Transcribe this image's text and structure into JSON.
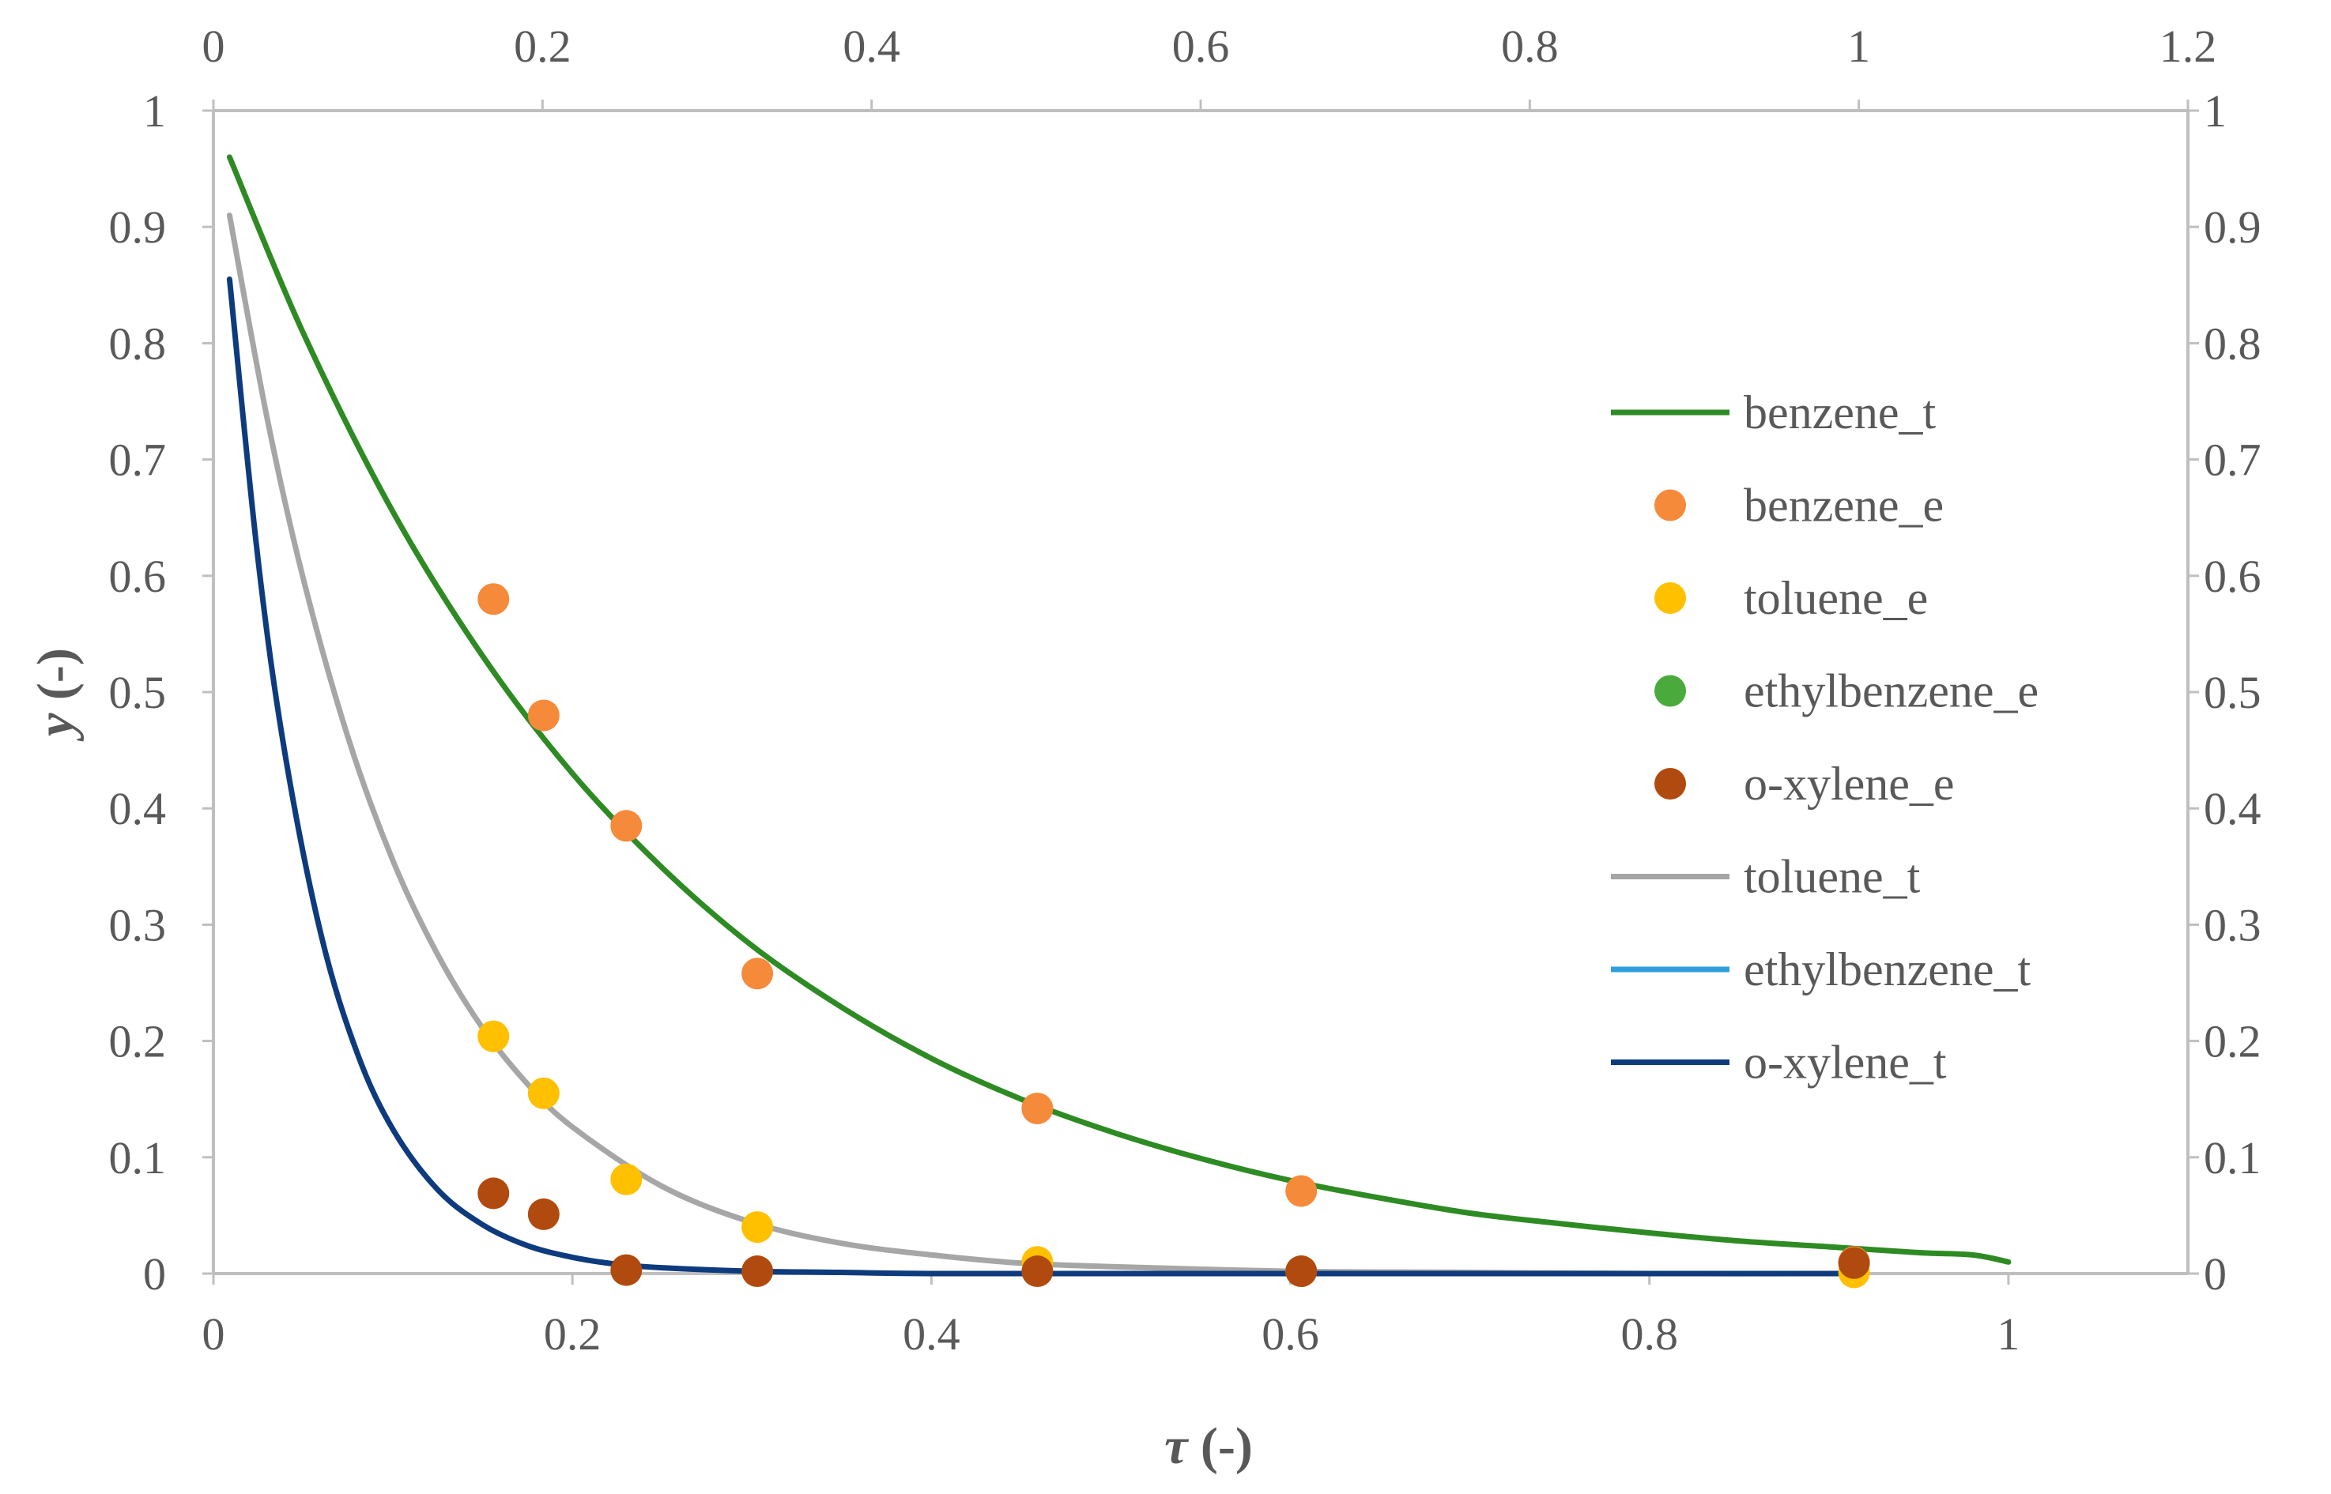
{
  "chart_data": {
    "type": "scatter",
    "xlabel_symbol": "τ",
    "xlabel_unit": " (-)",
    "ylabel_symbol": "y",
    "ylabel_unit": " (-)",
    "x_bottom": {
      "min": 0,
      "max": 1.1,
      "ticks": [
        0,
        0.2,
        0.4,
        0.6,
        0.8,
        1
      ],
      "labels": [
        "0",
        "0.2",
        "0.4",
        "0.6",
        "0.8",
        "1"
      ]
    },
    "x_top": {
      "min": 0,
      "max": 1.2,
      "ticks": [
        0,
        0.2,
        0.4,
        0.6,
        0.8,
        1,
        1.2
      ],
      "labels": [
        "0",
        "0.2",
        "0.4",
        "0.6",
        "0.8",
        "1",
        "1.2"
      ]
    },
    "y_left": {
      "min": 0,
      "max": 1,
      "ticks": [
        0,
        0.1,
        0.2,
        0.3,
        0.4,
        0.5,
        0.6,
        0.7,
        0.8,
        0.9,
        1
      ],
      "labels": [
        "0",
        "0.1",
        "0.2",
        "0.3",
        "0.4",
        "0.5",
        "0.6",
        "0.7",
        "0.8",
        "0.9",
        "1"
      ]
    },
    "y_right": {
      "min": 0,
      "max": 1,
      "ticks": [
        0,
        0.1,
        0.2,
        0.3,
        0.4,
        0.5,
        0.6,
        0.7,
        0.8,
        0.9,
        1
      ],
      "labels": [
        "0",
        "0.1",
        "0.2",
        "0.3",
        "0.4",
        "0.5",
        "0.6",
        "0.7",
        "0.8",
        "0.9",
        "1"
      ]
    },
    "series": [
      {
        "name": "benzene_t",
        "kind": "line",
        "color": "#2e8b24",
        "x": [
          0.009,
          0.05,
          0.1,
          0.15,
          0.2,
          0.25,
          0.3,
          0.35,
          0.4,
          0.45,
          0.5,
          0.55,
          0.6,
          0.65,
          0.7,
          0.75,
          0.8,
          0.85,
          0.9,
          0.95,
          0.98,
          1.0
        ],
        "y": [
          0.96,
          0.809,
          0.655,
          0.531,
          0.43,
          0.349,
          0.282,
          0.229,
          0.185,
          0.15,
          0.122,
          0.099,
          0.08,
          0.065,
          0.052,
          0.043,
          0.035,
          0.028,
          0.023,
          0.018,
          0.016,
          0.01
        ]
      },
      {
        "name": "benzene_e",
        "kind": "scatter",
        "color": "#f58a3a",
        "x": [
          0.156,
          0.184,
          0.23,
          0.303,
          0.459,
          0.606,
          0.914
        ],
        "y": [
          0.58,
          0.48,
          0.385,
          0.258,
          0.142,
          0.071,
          0.01
        ]
      },
      {
        "name": "toluene_e",
        "kind": "scatter",
        "color": "#ffc000",
        "x": [
          0.156,
          0.184,
          0.23,
          0.303,
          0.459,
          0.606,
          0.914
        ],
        "y": [
          0.204,
          0.155,
          0.081,
          0.04,
          0.01,
          0.002,
          0.001
        ]
      },
      {
        "name": "ethylbenzene_e",
        "kind": "scatter",
        "color": "#4aaa3c",
        "x": [],
        "y": []
      },
      {
        "name": "o-xylene_e",
        "kind": "scatter",
        "color": "#b14a0e",
        "x": [
          0.156,
          0.184,
          0.23,
          0.303,
          0.459,
          0.606,
          0.914
        ],
        "y": [
          0.069,
          0.051,
          0.003,
          0.002,
          0.002,
          0.002,
          0.009
        ]
      },
      {
        "name": "toluene_t",
        "kind": "line",
        "color": "#a6a6a6",
        "x": [
          0.009,
          0.03,
          0.05,
          0.075,
          0.1,
          0.125,
          0.15,
          0.175,
          0.2,
          0.25,
          0.3,
          0.35,
          0.4,
          0.45,
          0.5,
          0.6,
          0.7,
          0.8,
          0.914
        ],
        "y": [
          0.91,
          0.735,
          0.598,
          0.461,
          0.355,
          0.274,
          0.211,
          0.163,
          0.126,
          0.075,
          0.044,
          0.026,
          0.016,
          0.009,
          0.006,
          0.002,
          0.001,
          0.0,
          0.0
        ]
      },
      {
        "name": "ethylbenzene_t",
        "kind": "line",
        "color": "#2e9fdb",
        "x": [],
        "y": []
      },
      {
        "name": "o-xylene_t",
        "kind": "line",
        "color": "#0d3b7d",
        "x": [
          0.009,
          0.025,
          0.04,
          0.06,
          0.08,
          0.1,
          0.125,
          0.15,
          0.175,
          0.2,
          0.225,
          0.25,
          0.3,
          0.35,
          0.4,
          0.5,
          0.6,
          0.7,
          0.8,
          0.914
        ],
        "y": [
          0.855,
          0.612,
          0.446,
          0.291,
          0.19,
          0.124,
          0.072,
          0.042,
          0.024,
          0.014,
          0.008,
          0.005,
          0.002,
          0.001,
          0.0,
          0.0,
          0.0,
          0.0,
          0.0,
          0.0
        ]
      }
    ]
  }
}
